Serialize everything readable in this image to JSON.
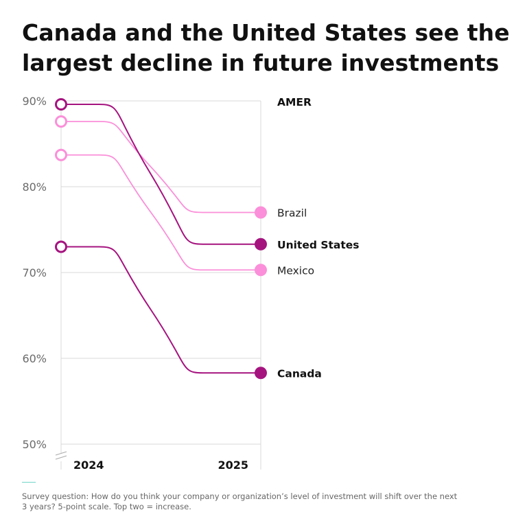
{
  "title_line1": "Canada and the United States see the",
  "title_line2": "largest decline in future investments",
  "footnote": "Survey question: How do you think your company or organization’s level of investment will shift over the next 3 years? 5-point scale. Top two = increase.",
  "colors": {
    "dark": "#a5137f",
    "light": "#fb8fd9",
    "grid": "#d9d9d9",
    "accent": "#6fd3c7"
  },
  "chart_data": {
    "type": "line",
    "title": "Canada and the United States see the largest decline in future investments",
    "region_label": "AMER",
    "x": [
      "2024",
      "2025"
    ],
    "ylim": [
      50,
      90
    ],
    "yticks": [
      50,
      60,
      70,
      80,
      90
    ],
    "ytick_labels": [
      "50%",
      "60%",
      "70%",
      "80%",
      "90%"
    ],
    "grid": true,
    "series": [
      {
        "name": "Brazil",
        "values": [
          87.6,
          77.0
        ],
        "color": "#fb8fd9",
        "emphasis": false
      },
      {
        "name": "United States",
        "values": [
          89.6,
          73.3
        ],
        "color": "#a5137f",
        "emphasis": true
      },
      {
        "name": "Mexico",
        "values": [
          83.7,
          70.3
        ],
        "color": "#fb8fd9",
        "emphasis": false
      },
      {
        "name": "Canada",
        "values": [
          73.0,
          58.3
        ],
        "color": "#a5137f",
        "emphasis": true
      }
    ]
  }
}
